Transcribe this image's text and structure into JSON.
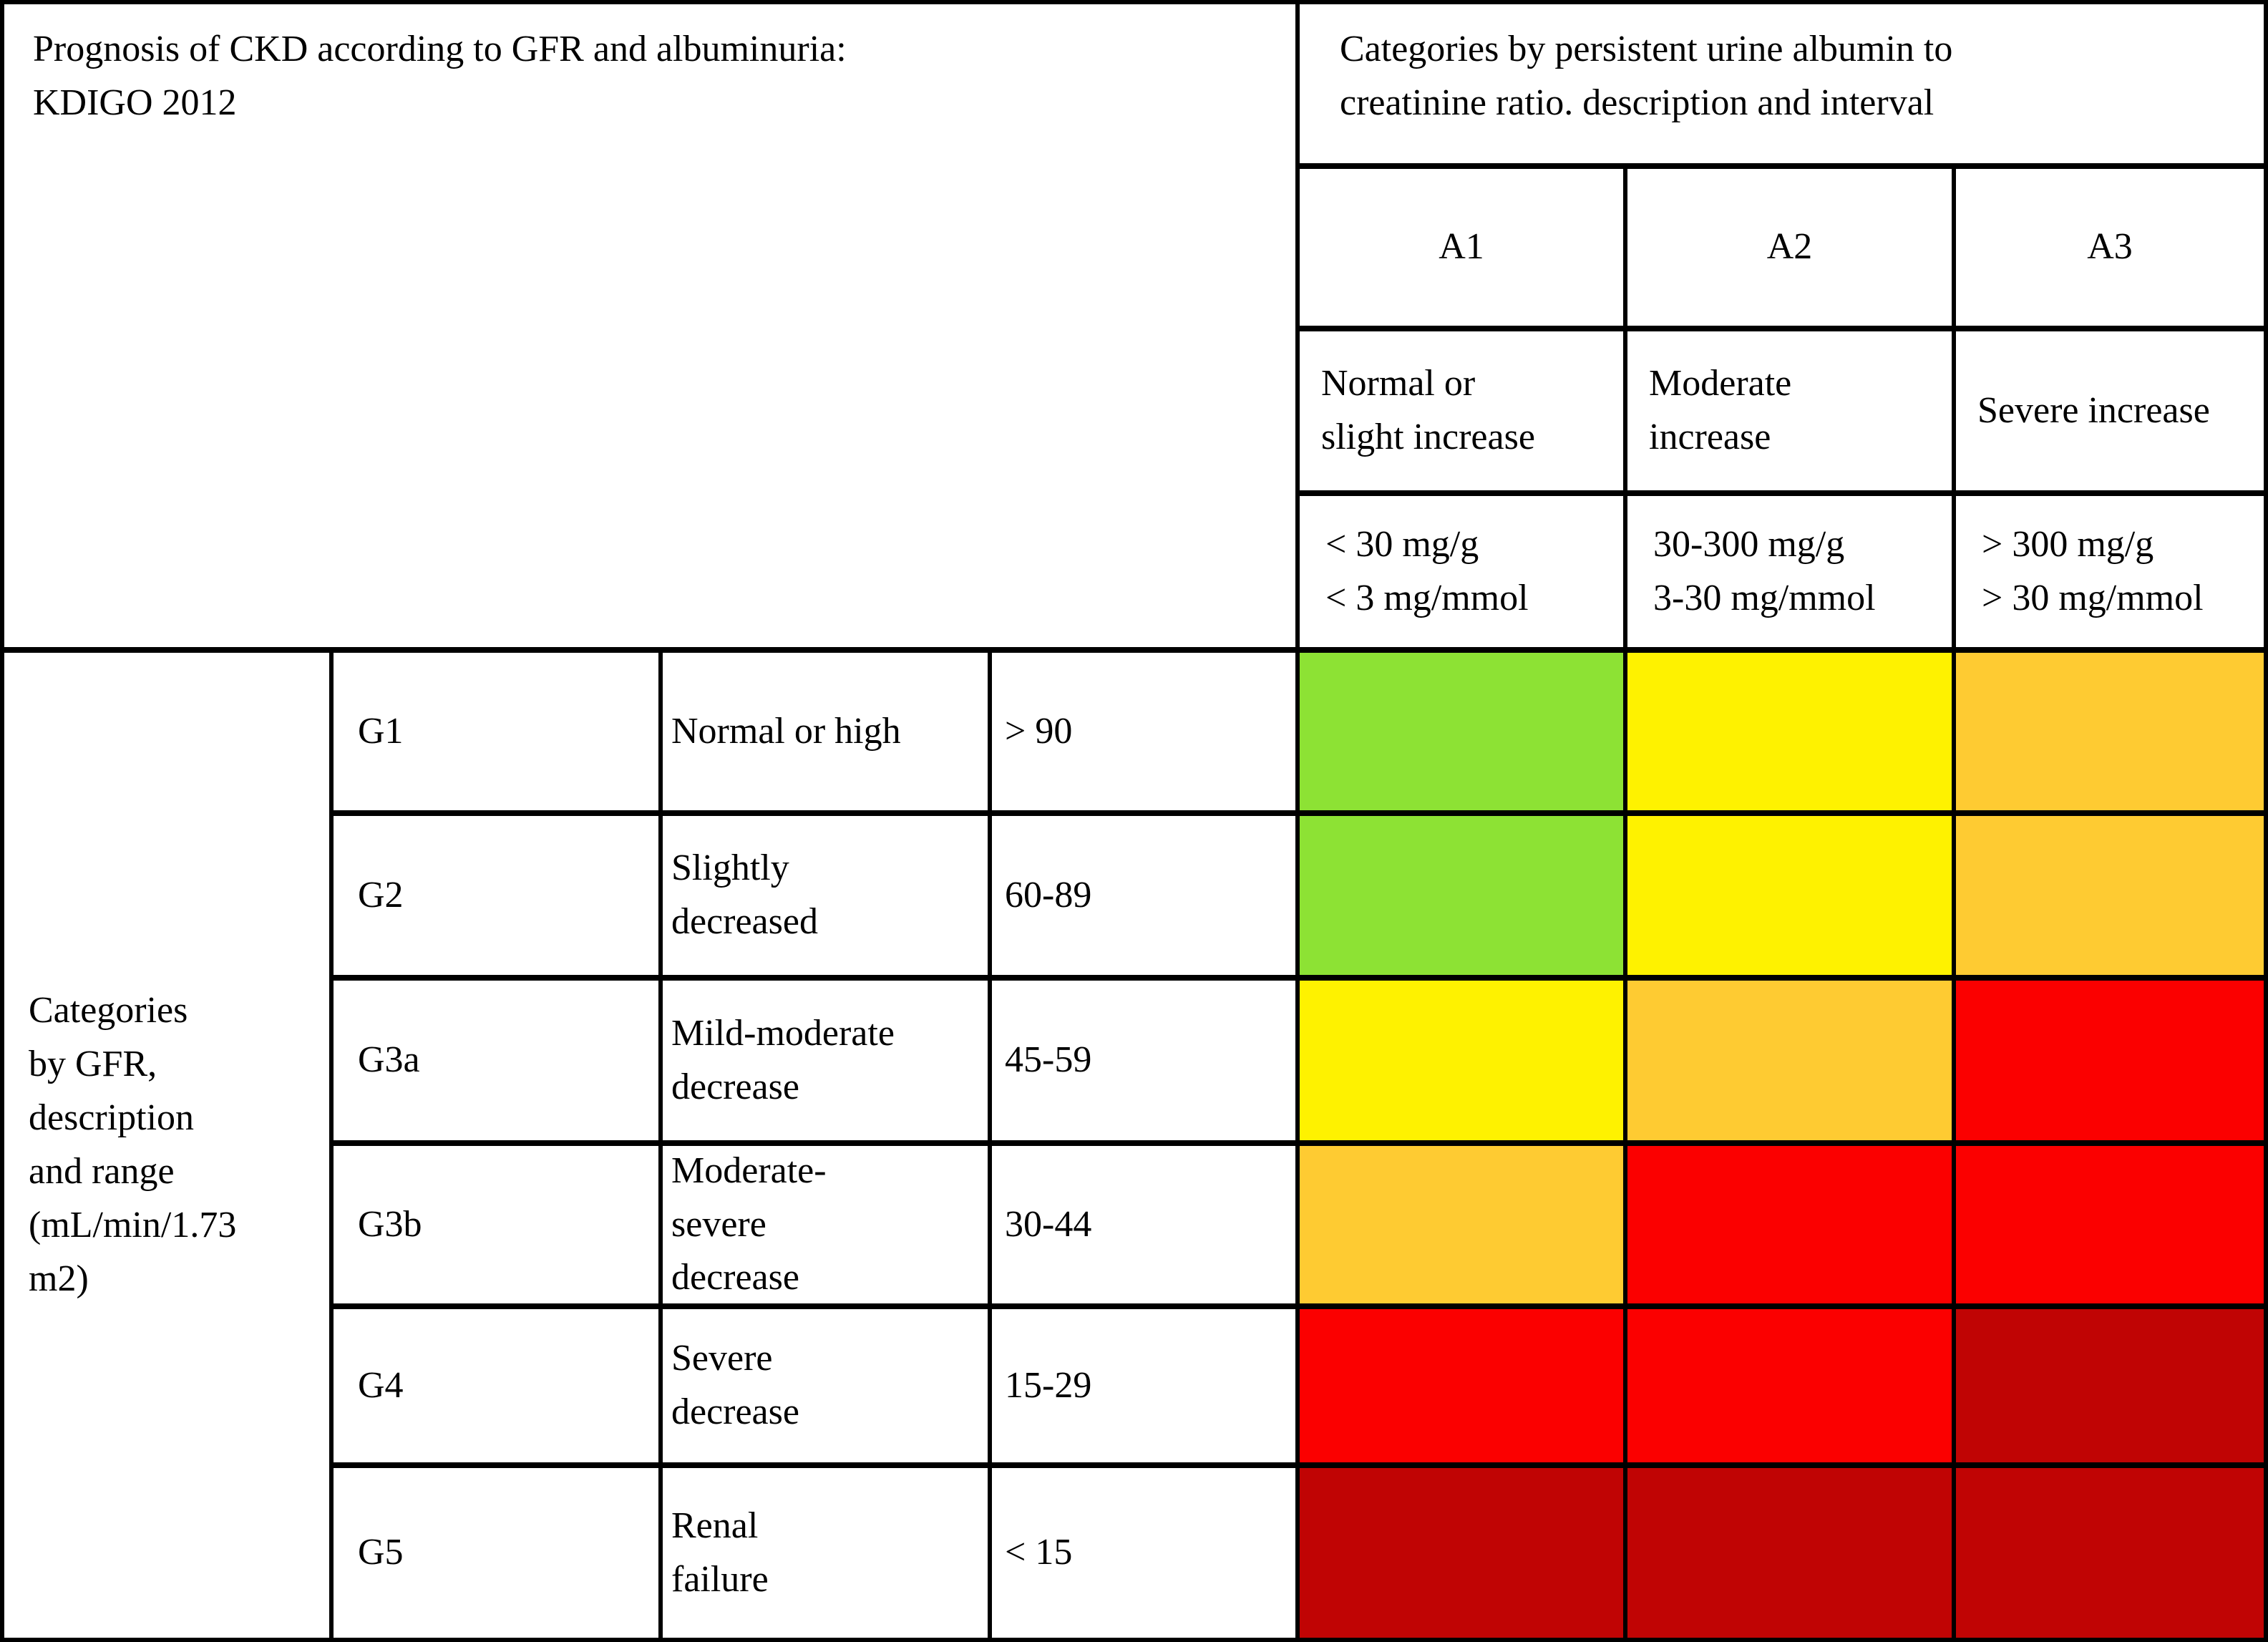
{
  "table": {
    "title": "Prognosis of CKD according to GFR and albuminuria:\nKDIGO 2012",
    "albumin_axis_header": "Categories by persistent urine albumin to\ncreatinine ratio. description and interval",
    "gfr_axis_header": "Categories\nby GFR,\ndescription\nand range\n(mL/min/1.73\nm2)"
  },
  "albumin_categories": [
    {
      "code": "A1",
      "description": "Normal or\nslight increase",
      "interval": "< 30 mg/g\n< 3 mg/mmol"
    },
    {
      "code": "A2",
      "description": "Moderate\nincrease",
      "interval": "30-300 mg/g\n3-30 mg/mmol"
    },
    {
      "code": "A3",
      "description": "Severe increase",
      "interval": "> 300 mg/g\n> 30 mg/mmol"
    }
  ],
  "gfr_categories": [
    {
      "code": "G1",
      "description": "Normal or high",
      "range": "> 90"
    },
    {
      "code": "G2",
      "description": "Slightly\ndecreased",
      "range": "60-89"
    },
    {
      "code": "G3a",
      "description": "Mild-moderate\ndecrease",
      "range": "45-59"
    },
    {
      "code": "G3b",
      "description": "Moderate-\nsevere\ndecrease",
      "range": "30-44"
    },
    {
      "code": "G4",
      "description": "Severe\ndecrease",
      "range": "15-29"
    },
    {
      "code": "G5",
      "description": "Renal\nfailure",
      "range": "< 15"
    }
  ],
  "risk_colors": {
    "green": "#8DE234",
    "yellow": "#FEF200",
    "amber": "#FECB32",
    "red": "#FB0000",
    "darkred": "#C00404"
  },
  "risk_matrix": [
    [
      "green",
      "yellow",
      "amber"
    ],
    [
      "green",
      "yellow",
      "amber"
    ],
    [
      "yellow",
      "amber",
      "red"
    ],
    [
      "amber",
      "red",
      "red"
    ],
    [
      "red",
      "red",
      "darkred"
    ],
    [
      "darkred",
      "darkred",
      "darkred"
    ]
  ]
}
